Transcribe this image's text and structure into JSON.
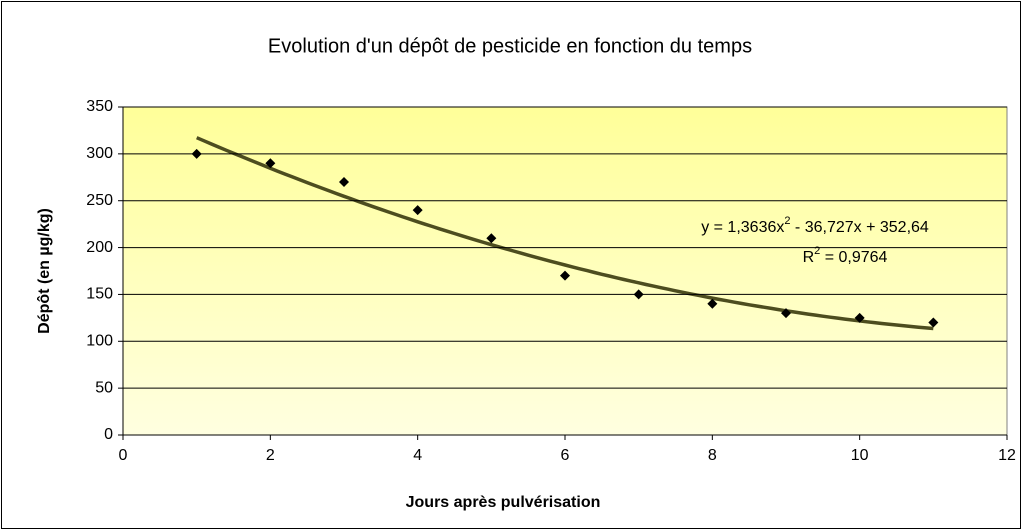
{
  "chart_data": {
    "type": "scatter",
    "title": "Evolution d'un dépôt de pesticide en fonction du temps",
    "x_label": "Jours après pulvérisation",
    "y_label": "Dépôt (en µg/kg)",
    "series": [
      {
        "color": "#000000",
        "x": [
          1,
          2,
          3,
          4,
          5,
          6,
          7,
          8,
          9,
          10,
          11
        ],
        "values": [
          300,
          290,
          270,
          240,
          210,
          170,
          150,
          140,
          130,
          125,
          120
        ]
      }
    ],
    "trendline": {
      "type": "polynomial",
      "coefficients": [
        1.3636,
        -36.727,
        352.64
      ],
      "color": "#4d4d1f",
      "equation": [
        "y = 1,3636x",
        "2",
        " - 36,727x + 352,64"
      ],
      "r2": [
        "R",
        "2",
        " = 0,9764"
      ]
    },
    "xlim": [
      0,
      12
    ],
    "xticks": [
      0,
      2,
      4,
      6,
      8,
      10,
      12
    ],
    "ylim": [
      0,
      350
    ],
    "yticks": [
      0,
      50,
      100,
      150,
      200,
      250,
      300,
      350
    ],
    "grid": true
  }
}
